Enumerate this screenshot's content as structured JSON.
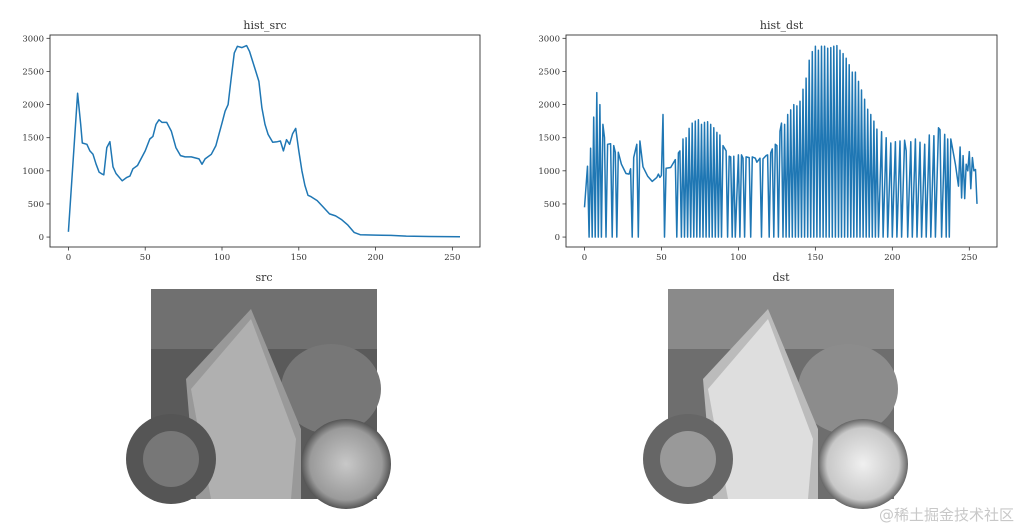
{
  "watermark": "@稀土掘金技术社区",
  "colors": {
    "line": "#1f77b4",
    "axis": "#333333"
  },
  "chart_data": [
    {
      "type": "line",
      "title": "hist_src",
      "xlabel": "",
      "ylabel": "",
      "xlim": [
        -12,
        268
      ],
      "ylim": [
        -150,
        3050
      ],
      "xticks": [
        0,
        50,
        100,
        150,
        200,
        250
      ],
      "yticks": [
        0,
        500,
        1000,
        1500,
        2000,
        2500,
        3000
      ],
      "points": [
        [
          0,
          80
        ],
        [
          6,
          2170
        ],
        [
          8,
          1700
        ],
        [
          9,
          1420
        ],
        [
          12,
          1400
        ],
        [
          14,
          1300
        ],
        [
          16,
          1250
        ],
        [
          18,
          1100
        ],
        [
          20,
          980
        ],
        [
          22,
          950
        ],
        [
          23,
          940
        ],
        [
          25,
          1350
        ],
        [
          27,
          1440
        ],
        [
          29,
          1060
        ],
        [
          31,
          960
        ],
        [
          35,
          850
        ],
        [
          38,
          900
        ],
        [
          40,
          920
        ],
        [
          42,
          1030
        ],
        [
          45,
          1080
        ],
        [
          50,
          1300
        ],
        [
          53,
          1480
        ],
        [
          55,
          1520
        ],
        [
          57,
          1700
        ],
        [
          59,
          1770
        ],
        [
          61,
          1730
        ],
        [
          64,
          1730
        ],
        [
          67,
          1600
        ],
        [
          70,
          1350
        ],
        [
          73,
          1230
        ],
        [
          76,
          1210
        ],
        [
          80,
          1210
        ],
        [
          85,
          1180
        ],
        [
          87,
          1100
        ],
        [
          89,
          1180
        ],
        [
          93,
          1250
        ],
        [
          96,
          1380
        ],
        [
          98,
          1550
        ],
        [
          100,
          1720
        ],
        [
          102,
          1900
        ],
        [
          104,
          2000
        ],
        [
          106,
          2400
        ],
        [
          108,
          2780
        ],
        [
          110,
          2880
        ],
        [
          113,
          2860
        ],
        [
          116,
          2890
        ],
        [
          118,
          2800
        ],
        [
          120,
          2650
        ],
        [
          122,
          2500
        ],
        [
          124,
          2350
        ],
        [
          126,
          1950
        ],
        [
          128,
          1700
        ],
        [
          130,
          1550
        ],
        [
          133,
          1430
        ],
        [
          136,
          1440
        ],
        [
          138,
          1450
        ],
        [
          140,
          1300
        ],
        [
          142,
          1470
        ],
        [
          144,
          1400
        ],
        [
          146,
          1560
        ],
        [
          148,
          1640
        ],
        [
          150,
          1300
        ],
        [
          152,
          1000
        ],
        [
          154,
          780
        ],
        [
          156,
          630
        ],
        [
          158,
          610
        ],
        [
          162,
          550
        ],
        [
          166,
          450
        ],
        [
          170,
          350
        ],
        [
          174,
          320
        ],
        [
          178,
          260
        ],
        [
          182,
          180
        ],
        [
          186,
          70
        ],
        [
          190,
          35
        ],
        [
          200,
          30
        ],
        [
          210,
          25
        ],
        [
          220,
          15
        ],
        [
          235,
          8
        ],
        [
          255,
          5
        ]
      ]
    },
    {
      "type": "line",
      "title": "hist_dst",
      "xlabel": "",
      "ylabel": "",
      "xlim": [
        -12,
        268
      ],
      "ylim": [
        -150,
        3050
      ],
      "xticks": [
        0,
        50,
        100,
        150,
        200,
        250
      ],
      "yticks": [
        0,
        500,
        1000,
        1500,
        2000,
        2500,
        3000
      ],
      "points": [
        [
          0,
          450
        ],
        [
          2,
          1070
        ],
        [
          3,
          0
        ],
        [
          4,
          1340
        ],
        [
          5,
          0
        ],
        [
          6,
          1810
        ],
        [
          7,
          0
        ],
        [
          8,
          2180
        ],
        [
          9,
          0
        ],
        [
          10,
          2000
        ],
        [
          11,
          0
        ],
        [
          12,
          1700
        ],
        [
          13,
          1500
        ],
        [
          14,
          0
        ],
        [
          15,
          1400
        ],
        [
          17,
          1410
        ],
        [
          18,
          0
        ],
        [
          19,
          1380
        ],
        [
          20,
          1280
        ],
        [
          21,
          0
        ],
        [
          22,
          1280
        ],
        [
          24,
          1100
        ],
        [
          27,
          960
        ],
        [
          29,
          950
        ],
        [
          30,
          1030
        ],
        [
          31,
          0
        ],
        [
          32,
          1200
        ],
        [
          34,
          1400
        ],
        [
          35,
          0
        ],
        [
          36,
          1450
        ],
        [
          38,
          1060
        ],
        [
          41,
          920
        ],
        [
          44,
          840
        ],
        [
          47,
          900
        ],
        [
          48,
          950
        ],
        [
          49,
          900
        ],
        [
          50,
          930
        ],
        [
          51,
          1850
        ],
        [
          52,
          0
        ],
        [
          53,
          1040
        ],
        [
          56,
          1050
        ],
        [
          59,
          1170
        ],
        [
          60,
          0
        ],
        [
          61,
          1270
        ],
        [
          62,
          1300
        ],
        [
          63,
          0
        ],
        [
          64,
          1480
        ],
        [
          65,
          0
        ],
        [
          66,
          1500
        ],
        [
          67,
          0
        ],
        [
          68,
          1640
        ],
        [
          69,
          0
        ],
        [
          70,
          1720
        ],
        [
          71,
          0
        ],
        [
          72,
          1750
        ],
        [
          73,
          0
        ],
        [
          74,
          1770
        ],
        [
          75,
          0
        ],
        [
          76,
          1700
        ],
        [
          77,
          0
        ],
        [
          78,
          1730
        ],
        [
          79,
          0
        ],
        [
          80,
          1740
        ],
        [
          81,
          0
        ],
        [
          82,
          1700
        ],
        [
          83,
          0
        ],
        [
          84,
          1650
        ],
        [
          85,
          0
        ],
        [
          86,
          1580
        ],
        [
          87,
          0
        ],
        [
          88,
          1540
        ],
        [
          89,
          0
        ],
        [
          90,
          1380
        ],
        [
          92,
          1300
        ],
        [
          93,
          0
        ],
        [
          94,
          1220
        ],
        [
          95,
          1210
        ],
        [
          96,
          0
        ],
        [
          97,
          1220
        ],
        [
          98,
          0
        ],
        [
          100,
          1240
        ],
        [
          101,
          0
        ],
        [
          102,
          1240
        ],
        [
          103,
          1190
        ],
        [
          104,
          0
        ],
        [
          105,
          1210
        ],
        [
          107,
          1200
        ],
        [
          108,
          0
        ],
        [
          109,
          1210
        ],
        [
          111,
          1190
        ],
        [
          112,
          1130
        ],
        [
          114,
          1190
        ],
        [
          115,
          0
        ],
        [
          116,
          1180
        ],
        [
          118,
          1230
        ],
        [
          119,
          1240
        ],
        [
          120,
          0
        ],
        [
          121,
          1270
        ],
        [
          122,
          1330
        ],
        [
          123,
          0
        ],
        [
          124,
          1400
        ],
        [
          125,
          1380
        ],
        [
          126,
          0
        ],
        [
          127,
          1600
        ],
        [
          128,
          1720
        ],
        [
          129,
          0
        ],
        [
          130,
          1700
        ],
        [
          131,
          0
        ],
        [
          132,
          1850
        ],
        [
          133,
          0
        ],
        [
          134,
          1920
        ],
        [
          135,
          0
        ],
        [
          136,
          2000
        ],
        [
          137,
          0
        ],
        [
          138,
          1980
        ],
        [
          139,
          0
        ],
        [
          140,
          2050
        ],
        [
          141,
          0
        ],
        [
          142,
          2230
        ],
        [
          143,
          0
        ],
        [
          144,
          2400
        ],
        [
          145,
          0
        ],
        [
          146,
          2670
        ],
        [
          147,
          0
        ],
        [
          148,
          2800
        ],
        [
          149,
          0
        ],
        [
          150,
          2880
        ],
        [
          151,
          0
        ],
        [
          152,
          2820
        ],
        [
          153,
          0
        ],
        [
          154,
          2880
        ],
        [
          155,
          0
        ],
        [
          156,
          2880
        ],
        [
          157,
          0
        ],
        [
          158,
          2850
        ],
        [
          159,
          0
        ],
        [
          160,
          2860
        ],
        [
          161,
          0
        ],
        [
          162,
          2880
        ],
        [
          163,
          0
        ],
        [
          164,
          2890
        ],
        [
          165,
          0
        ],
        [
          166,
          2820
        ],
        [
          167,
          0
        ],
        [
          168,
          2770
        ],
        [
          169,
          0
        ],
        [
          170,
          2700
        ],
        [
          171,
          0
        ],
        [
          172,
          2600
        ],
        [
          173,
          0
        ],
        [
          174,
          2490
        ],
        [
          175,
          0
        ],
        [
          176,
          2490
        ],
        [
          177,
          0
        ],
        [
          178,
          2350
        ],
        [
          179,
          0
        ],
        [
          180,
          2220
        ],
        [
          181,
          0
        ],
        [
          182,
          2080
        ],
        [
          183,
          0
        ],
        [
          184,
          1930
        ],
        [
          185,
          0
        ],
        [
          186,
          1850
        ],
        [
          187,
          0
        ],
        [
          188,
          1750
        ],
        [
          189,
          0
        ],
        [
          190,
          1630
        ],
        [
          191,
          0
        ],
        [
          193,
          1590
        ],
        [
          194,
          0
        ],
        [
          196,
          1500
        ],
        [
          197,
          0
        ],
        [
          199,
          1420
        ],
        [
          200,
          0
        ],
        [
          202,
          1440
        ],
        [
          203,
          0
        ],
        [
          205,
          1450
        ],
        [
          206,
          0
        ],
        [
          208,
          1460
        ],
        [
          209,
          1300
        ],
        [
          210,
          0
        ],
        [
          212,
          1440
        ],
        [
          213,
          0
        ],
        [
          215,
          1480
        ],
        [
          216,
          0
        ],
        [
          218,
          1430
        ],
        [
          219,
          0
        ],
        [
          221,
          1400
        ],
        [
          222,
          0
        ],
        [
          224,
          1540
        ],
        [
          225,
          0
        ],
        [
          227,
          1530
        ],
        [
          228,
          0
        ],
        [
          230,
          1650
        ],
        [
          231,
          1620
        ],
        [
          232,
          0
        ],
        [
          234,
          1550
        ],
        [
          235,
          0
        ],
        [
          236,
          1480
        ],
        [
          237,
          0
        ],
        [
          238,
          1480
        ],
        [
          241,
          1100
        ],
        [
          243,
          770
        ],
        [
          244,
          1360
        ],
        [
          245,
          590
        ],
        [
          246,
          1230
        ],
        [
          247,
          580
        ],
        [
          248,
          1100
        ],
        [
          249,
          1000
        ],
        [
          250,
          1290
        ],
        [
          251,
          730
        ],
        [
          252,
          1200
        ],
        [
          253,
          1000
        ],
        [
          254,
          1020
        ],
        [
          255,
          500
        ]
      ]
    }
  ],
  "images": [
    {
      "title": "src"
    },
    {
      "title": "dst"
    }
  ]
}
